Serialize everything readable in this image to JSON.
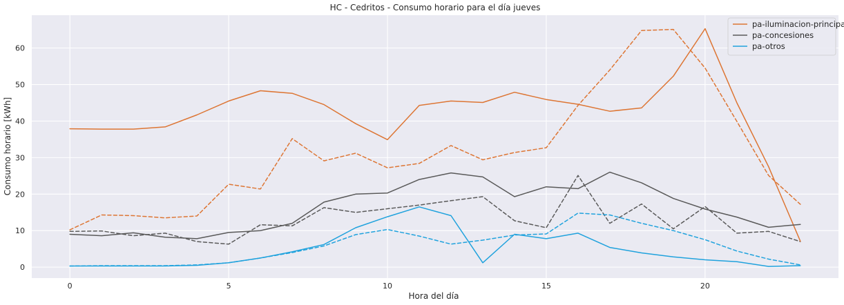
{
  "chart_data": {
    "type": "line",
    "title": "HC - Cedritos - Consumo horario para el día jueves",
    "xlabel": "Hora del día",
    "ylabel": "Consumo horario [kWh]",
    "xlim": [
      -1.2,
      24.2
    ],
    "ylim": [
      -3,
      69
    ],
    "xticks": [
      0,
      5,
      10,
      15,
      20
    ],
    "yticks": [
      0,
      10,
      20,
      30,
      40,
      50,
      60
    ],
    "grid": true,
    "legend_position": "top-right",
    "x": [
      0,
      1,
      2,
      3,
      4,
      5,
      6,
      7,
      8,
      9,
      10,
      11,
      12,
      13,
      14,
      15,
      16,
      17,
      18,
      19,
      20,
      21,
      22,
      23
    ],
    "series": [
      {
        "name": "pa-iluminacion-principal",
        "color": "#dd7533",
        "style": "solid",
        "in_legend": true,
        "values": [
          37.9,
          37.8,
          37.8,
          38.4,
          41.7,
          45.5,
          48.3,
          47.6,
          44.5,
          39.3,
          34.9,
          44.3,
          45.5,
          45.1,
          47.9,
          45.9,
          44.6,
          42.7,
          43.6,
          52.3,
          65.3,
          45.0,
          27.5,
          7.1
        ]
      },
      {
        "name": "pa-concesiones",
        "color": "#595959",
        "style": "solid",
        "in_legend": true,
        "values": [
          9.0,
          8.6,
          9.4,
          8.2,
          7.8,
          9.5,
          10.0,
          12.0,
          17.8,
          20.0,
          20.3,
          24.0,
          25.8,
          24.7,
          19.3,
          22.0,
          21.5,
          26.0,
          23.1,
          18.8,
          15.9,
          13.7,
          10.9,
          11.7
        ]
      },
      {
        "name": "pa-otros",
        "color": "#1fa2dd",
        "style": "solid",
        "in_legend": true,
        "values": [
          0.3,
          0.3,
          0.3,
          0.3,
          0.5,
          1.2,
          2.5,
          4.2,
          6.2,
          10.8,
          13.8,
          16.5,
          14.1,
          1.2,
          9.0,
          7.8,
          9.3,
          5.4,
          3.9,
          2.8,
          2.0,
          1.5,
          0.2,
          0.4
        ]
      },
      {
        "color": "#dd7533",
        "style": "dashed",
        "in_legend": false,
        "values": [
          10.2,
          14.3,
          14.1,
          13.5,
          14.0,
          22.7,
          21.4,
          35.2,
          29.1,
          31.2,
          27.2,
          28.4,
          33.3,
          29.4,
          31.4,
          32.7,
          44.3,
          54.0,
          64.8,
          65.1,
          54.5,
          39.9,
          25.1,
          17.2
        ]
      },
      {
        "color": "#595959",
        "style": "dashed",
        "in_legend": false,
        "values": [
          9.8,
          9.9,
          8.6,
          9.3,
          7.0,
          6.3,
          11.6,
          11.3,
          16.3,
          15.0,
          16.0,
          17.0,
          18.2,
          19.3,
          12.7,
          10.8,
          25.1,
          12.0,
          17.3,
          10.5,
          16.6,
          9.3,
          9.8,
          7.0
        ]
      },
      {
        "color": "#1fa2dd",
        "style": "dashed",
        "in_legend": false,
        "values": [
          0.3,
          0.4,
          0.4,
          0.4,
          0.6,
          1.2,
          2.5,
          4.0,
          5.8,
          8.9,
          10.3,
          8.5,
          6.3,
          7.4,
          8.8,
          9.1,
          14.8,
          14.3,
          12.0,
          10.0,
          7.5,
          4.4,
          2.2,
          0.6
        ]
      }
    ]
  }
}
